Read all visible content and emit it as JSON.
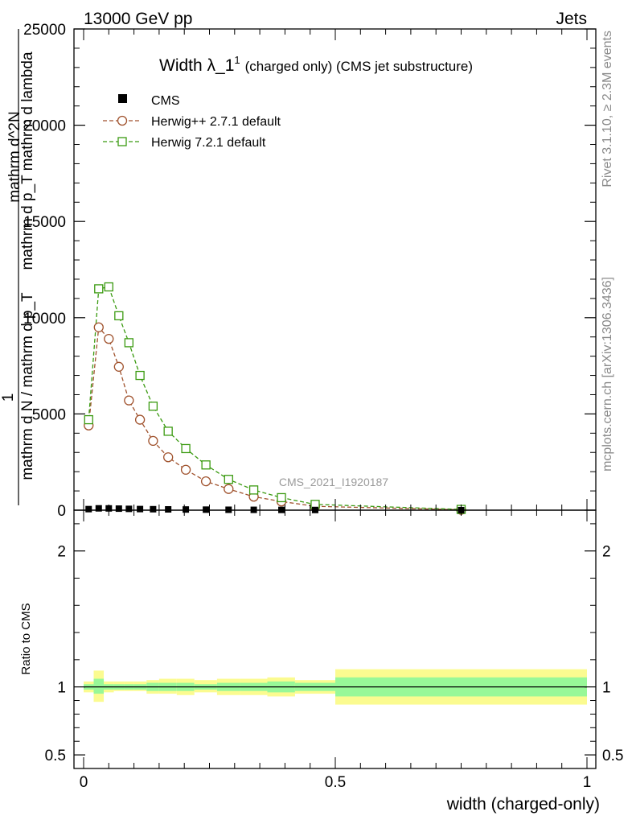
{
  "header": {
    "energy_label": "13000 GeV pp",
    "process_label": "Jets",
    "side_label_top": "Rivet 3.1.10, ≥ 2.3M events",
    "side_label_bottom": "mcplots.cern.ch [arXiv:1306.3436]",
    "watermark": "CMS_2021_I1920187"
  },
  "colors": {
    "cms": "#000000",
    "herwigpp": "#a0522d",
    "herwig7": "#3a9a10",
    "band_inner": "#98f898",
    "band_outer": "#fbfb90"
  },
  "chart_data": [
    {
      "type": "line",
      "panel": "main",
      "title_main": "Width λ_1",
      "title_sup": "1",
      "title_rest": "(charged only) (CMS jet substructure)",
      "ylabel": "1 / mathrm d N / mathrm d p_T mathrm d p_T mathrm d lambda mathrm d^2N",
      "ylabel_upper": "mathrm d^2N",
      "ylabel_upper2": "mathrm d p_T mathrm d lambda",
      "ylabel_one": "1",
      "ylabel_lower": "mathrm d N / mathrm d p_T",
      "xlim": [
        0,
        1
      ],
      "ylim": [
        0,
        25000
      ],
      "yticks": [
        0,
        5000,
        10000,
        15000,
        20000,
        25000
      ],
      "ytick_labels": [
        "0",
        "5000",
        "10000",
        "15000",
        "20000",
        "25000"
      ],
      "legend_position": "top-left",
      "series": [
        {
          "name": "CMS",
          "marker": "filled-square",
          "x": [
            0.01,
            0.03,
            0.05,
            0.07,
            0.09,
            0.112,
            0.138,
            0.168,
            0.203,
            0.243,
            0.288,
            0.338,
            0.393,
            0.46,
            0.75
          ],
          "y": [
            55,
            95,
            92,
            80,
            68,
            58,
            50,
            42,
            35,
            28,
            22,
            18,
            14,
            10,
            3
          ]
        },
        {
          "name": "Herwig++ 2.7.1 default",
          "marker": "open-circle",
          "line": "dashed",
          "x": [
            0.01,
            0.03,
            0.05,
            0.07,
            0.09,
            0.112,
            0.138,
            0.168,
            0.203,
            0.243,
            0.288,
            0.338,
            0.393,
            0.46,
            0.75
          ],
          "y": [
            4400,
            9500,
            8900,
            7450,
            5700,
            4700,
            3600,
            2750,
            2100,
            1500,
            1100,
            700,
            450,
            200,
            20
          ]
        },
        {
          "name": "Herwig 7.2.1 default",
          "marker": "open-square",
          "line": "dashed",
          "x": [
            0.01,
            0.03,
            0.05,
            0.07,
            0.09,
            0.112,
            0.138,
            0.168,
            0.203,
            0.243,
            0.288,
            0.338,
            0.393,
            0.46,
            0.75
          ],
          "y": [
            4700,
            11500,
            11600,
            10100,
            8700,
            7000,
            5400,
            4100,
            3200,
            2350,
            1600,
            1050,
            650,
            300,
            40
          ]
        }
      ]
    },
    {
      "type": "area",
      "panel": "ratio",
      "ylabel": "Ratio to CMS",
      "xlabel": "width (charged-only)",
      "xlim": [
        0,
        1
      ],
      "ylim": [
        0.4,
        2.3
      ],
      "yticks": [
        0.5,
        1,
        2
      ],
      "ytick_labels": [
        "0.5",
        "1",
        "2"
      ],
      "xticks": [
        0,
        0.5,
        1
      ],
      "xtick_labels": [
        "0",
        "0.5",
        "1"
      ],
      "bands": {
        "edges": [
          0.0,
          0.02,
          0.04,
          0.06,
          0.08,
          0.1,
          0.125,
          0.15,
          0.185,
          0.22,
          0.265,
          0.31,
          0.365,
          0.42,
          0.5,
          1.0
        ],
        "inner_low": [
          0.98,
          0.95,
          0.98,
          0.98,
          0.98,
          0.98,
          0.97,
          0.97,
          0.97,
          0.98,
          0.97,
          0.97,
          0.96,
          0.97,
          0.93
        ],
        "inner_high": [
          1.02,
          1.06,
          1.02,
          1.02,
          1.02,
          1.02,
          1.03,
          1.03,
          1.03,
          1.02,
          1.03,
          1.03,
          1.04,
          1.03,
          1.07
        ],
        "outer_low": [
          0.96,
          0.89,
          0.96,
          0.97,
          0.97,
          0.97,
          0.95,
          0.95,
          0.94,
          0.96,
          0.94,
          0.94,
          0.93,
          0.95,
          0.87
        ],
        "outer_high": [
          1.04,
          1.12,
          1.04,
          1.04,
          1.04,
          1.04,
          1.05,
          1.06,
          1.06,
          1.05,
          1.06,
          1.06,
          1.07,
          1.05,
          1.13
        ]
      }
    }
  ]
}
